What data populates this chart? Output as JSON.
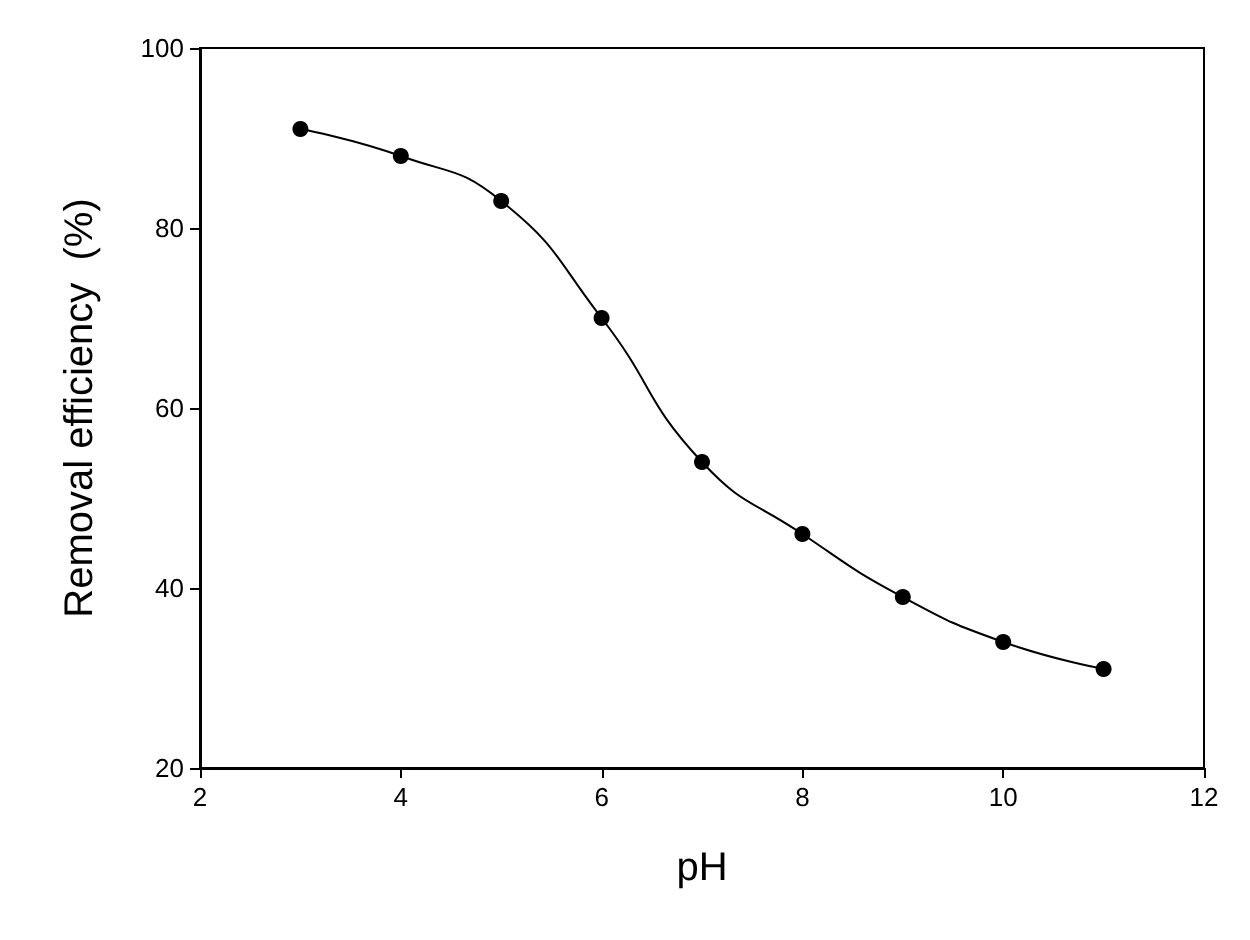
{
  "chart_data": {
    "type": "line",
    "xlabel": "pH",
    "ylabel": "Removal efficiency  (%)",
    "x": [
      3,
      4,
      5,
      6,
      7,
      8,
      9,
      10,
      11
    ],
    "series": [
      {
        "color": "#000000",
        "values": [
          91,
          88,
          83,
          70,
          54,
          46,
          39,
          34,
          31
        ]
      }
    ],
    "xlim": [
      2,
      12
    ],
    "xticks": [
      2,
      4,
      6,
      8,
      10,
      12
    ],
    "ylim": [
      20,
      100
    ],
    "yticks": [
      20,
      40,
      60,
      80,
      100
    ],
    "grid": false,
    "marker": "circle",
    "line_style": "solid"
  }
}
